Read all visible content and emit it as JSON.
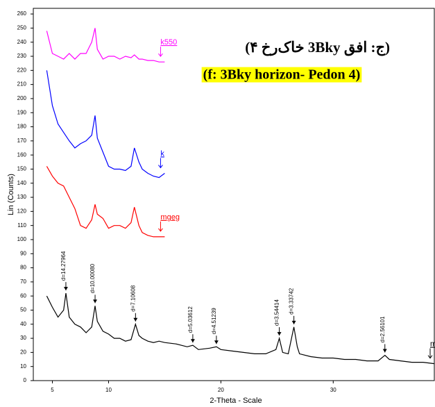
{
  "chart_data": {
    "type": "line",
    "title": "(ج: افق 3Bky خاک‌رخ ۴)",
    "subtitle": "(f: 3Bky horizon- Pedon 4)",
    "x_label": "2-Theta - Scale",
    "y_label": "Lin (Counts)",
    "xlim": [
      3.3,
      39
    ],
    "ylim": [
      0,
      264
    ],
    "xticks": [
      5,
      10,
      20,
      30
    ],
    "yticks": [
      0,
      10,
      20,
      30,
      40,
      50,
      60,
      70,
      80,
      90,
      100,
      110,
      120,
      130,
      140,
      150,
      160,
      170,
      180,
      190,
      200,
      210,
      220,
      230,
      240,
      250,
      260
    ],
    "series": [
      {
        "name": "m",
        "color": "#000000",
        "x": [
          4.5,
          5,
          5.5,
          6,
          6.2,
          6.5,
          7,
          7.5,
          8,
          8.5,
          8.8,
          9,
          9.5,
          10,
          10.5,
          11,
          11.5,
          12,
          12.4,
          12.7,
          13,
          13.5,
          14,
          14.5,
          15,
          16,
          17,
          17.5,
          18,
          19,
          19.6,
          20,
          21,
          22,
          23,
          24,
          24.9,
          25.2,
          25.5,
          26,
          26.5,
          26.8,
          27,
          28,
          29,
          30,
          31,
          32,
          33,
          34,
          34.6,
          35,
          36,
          37,
          38,
          39
        ],
        "values": [
          60,
          52,
          45,
          50,
          62,
          45,
          40,
          38,
          34,
          38,
          53,
          42,
          35,
          33,
          30,
          30,
          28,
          29,
          40,
          32,
          30,
          28,
          27,
          28,
          27,
          26,
          24,
          25,
          22,
          23,
          24,
          22,
          21,
          20,
          19,
          19,
          22,
          30,
          20,
          19,
          38,
          24,
          19,
          17,
          16,
          16,
          15,
          15,
          14,
          14,
          18,
          15,
          14,
          13,
          13,
          12
        ]
      },
      {
        "name": "mgeg",
        "color": "#ff0000",
        "x": [
          4.5,
          5,
          5.5,
          6,
          6.5,
          7,
          7.5,
          8,
          8.5,
          8.8,
          9,
          9.5,
          10,
          10.5,
          11,
          11.5,
          12,
          12.3,
          12.7,
          13,
          13.5,
          14,
          14.5,
          15
        ],
        "values": [
          152,
          145,
          140,
          138,
          130,
          122,
          110,
          108,
          114,
          125,
          118,
          115,
          108,
          110,
          110,
          108,
          112,
          123,
          110,
          105,
          103,
          102,
          102,
          102
        ]
      },
      {
        "name": "k",
        "color": "#0000ff",
        "x": [
          4.5,
          5,
          5.5,
          6,
          6.5,
          7,
          7.5,
          8,
          8.5,
          8.8,
          9,
          9.5,
          10,
          10.5,
          11,
          11.5,
          12,
          12.3,
          12.7,
          13,
          13.5,
          14,
          14.5,
          15
        ],
        "values": [
          220,
          195,
          182,
          176,
          170,
          165,
          168,
          170,
          174,
          188,
          172,
          162,
          152,
          150,
          150,
          149,
          152,
          165,
          155,
          150,
          147,
          145,
          144,
          147
        ]
      },
      {
        "name": "k550",
        "color": "#ff00ff",
        "x": [
          4.5,
          5,
          5.5,
          6,
          6.5,
          7,
          7.5,
          8,
          8.5,
          8.8,
          9,
          9.5,
          10,
          10.5,
          11,
          11.5,
          12,
          12.3,
          12.7,
          13,
          13.5,
          14,
          14.5,
          15
        ],
        "values": [
          248,
          232,
          230,
          228,
          232,
          228,
          232,
          232,
          240,
          250,
          235,
          228,
          230,
          230,
          228,
          230,
          229,
          231,
          228,
          228,
          227,
          227,
          226,
          226
        ]
      }
    ],
    "annotations": [
      {
        "text": "d=14.27964",
        "x": 6.2
      },
      {
        "text": "d=10.00080",
        "x": 8.8
      },
      {
        "text": "d=7.10608",
        "x": 12.4
      },
      {
        "text": "d=5.03612",
        "x": 17.5
      },
      {
        "text": "d=4.51239",
        "x": 19.6
      },
      {
        "text": "d=3.54414",
        "x": 25.2
      },
      {
        "text": "d=3.33742",
        "x": 26.5
      },
      {
        "text": "d=2.56101",
        "x": 34.6
      }
    ]
  }
}
